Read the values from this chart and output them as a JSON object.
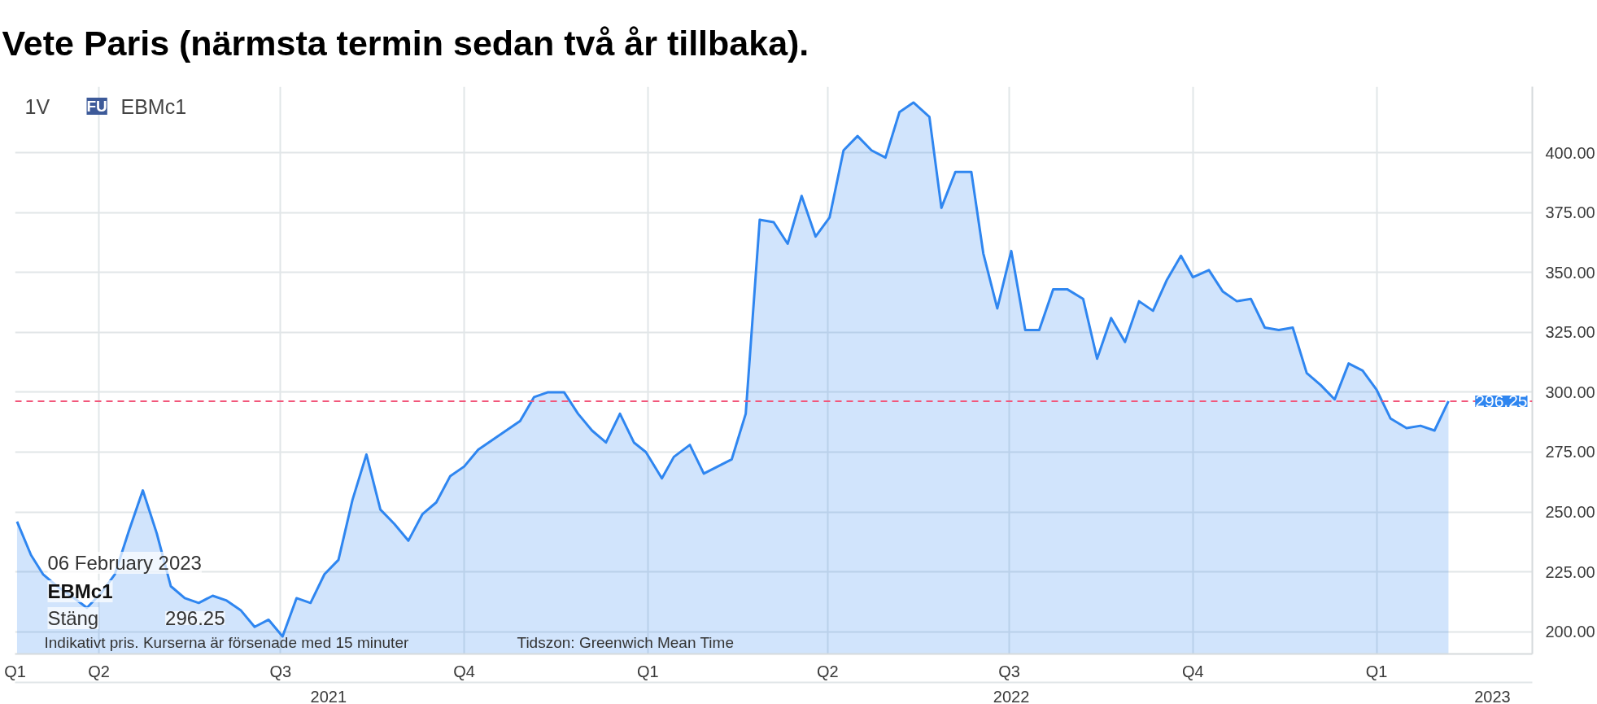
{
  "chart_data": {
    "type": "area",
    "title": "Vete Paris (närmsta termin sedan två år tillbaka).",
    "x": [
      "2021-02-19",
      "2021-02-26",
      "2021-03-04",
      "2021-03-11",
      "2021-03-18",
      "2021-03-26",
      "2021-04-02",
      "2021-04-09",
      "2021-04-16",
      "2021-04-23",
      "2021-04-30",
      "2021-05-07",
      "2021-05-14",
      "2021-05-21",
      "2021-05-28",
      "2021-06-04",
      "2021-06-11",
      "2021-06-18",
      "2021-06-25",
      "2021-07-02",
      "2021-07-09",
      "2021-07-16",
      "2021-07-23",
      "2021-07-30",
      "2021-08-06",
      "2021-08-13",
      "2021-08-20",
      "2021-08-27",
      "2021-09-03",
      "2021-09-10",
      "2021-09-17",
      "2021-09-24",
      "2021-10-01",
      "2021-10-08",
      "2021-10-15",
      "2021-10-22",
      "2021-10-29",
      "2021-11-05",
      "2021-11-12",
      "2021-11-20",
      "2021-11-27",
      "2021-12-04",
      "2021-12-11",
      "2021-12-18",
      "2021-12-25",
      "2021-12-31",
      "2022-01-08",
      "2022-01-14",
      "2022-01-22",
      "2022-01-29",
      "2022-02-05",
      "2022-02-12",
      "2022-02-19",
      "2022-02-26",
      "2022-03-05",
      "2022-03-12",
      "2022-03-19",
      "2022-03-26",
      "2022-04-02",
      "2022-04-09",
      "2022-04-16",
      "2022-04-23",
      "2022-04-30",
      "2022-05-07",
      "2022-05-14",
      "2022-05-22",
      "2022-05-28",
      "2022-06-04",
      "2022-06-12",
      "2022-06-18",
      "2022-06-25",
      "2022-07-02",
      "2022-07-09",
      "2022-07-16",
      "2022-07-23",
      "2022-07-30",
      "2022-08-07",
      "2022-08-14",
      "2022-08-21",
      "2022-08-28",
      "2022-09-04",
      "2022-09-11",
      "2022-09-18",
      "2022-09-25",
      "2022-10-01",
      "2022-10-09",
      "2022-10-16",
      "2022-10-23",
      "2022-10-30",
      "2022-11-06",
      "2022-11-13",
      "2022-11-20",
      "2022-11-27",
      "2022-12-04",
      "2022-12-11",
      "2022-12-18",
      "2022-12-25",
      "2023-01-01",
      "2023-01-08",
      "2023-01-16",
      "2023-01-23",
      "2023-01-30",
      "2023-02-06"
    ],
    "values": [
      246,
      232,
      224,
      219,
      215,
      210,
      216,
      224,
      242,
      259,
      241,
      219,
      214,
      212,
      215,
      213,
      209,
      202,
      205,
      198,
      214,
      212,
      224,
      230,
      255,
      274,
      251,
      245,
      238,
      249,
      254,
      265,
      269,
      276,
      280,
      284,
      288,
      298,
      300,
      300,
      291,
      284,
      279,
      291,
      279,
      275,
      264,
      273,
      278,
      266,
      269,
      272,
      291,
      372,
      371,
      362,
      382,
      365,
      373,
      401,
      407,
      401,
      398,
      417,
      421,
      415,
      377,
      392,
      392,
      358,
      335,
      359,
      326,
      326,
      343,
      343,
      339,
      314,
      331,
      321,
      338,
      334,
      347,
      357,
      348,
      351,
      342,
      338,
      339,
      327,
      326,
      327,
      308,
      303,
      297,
      312,
      309,
      301,
      289,
      285,
      286,
      284,
      296.25
    ],
    "color": "#2f86f0",
    "xlim": [
      "2021-02-18",
      "2023-03-20"
    ],
    "xticks": [
      {
        "value": "2021-02-18",
        "label": "Q1"
      },
      {
        "value": "2021-04-01",
        "label": "Q2"
      },
      {
        "value": "2021-07-01",
        "label": "Q3"
      },
      {
        "value": "2021-10-01",
        "label": "Q4"
      },
      {
        "value": "2022-01-01",
        "label": "Q1"
      },
      {
        "value": "2022-04-01",
        "label": "Q2"
      },
      {
        "value": "2022-07-01",
        "label": "Q3"
      },
      {
        "value": "2022-10-01",
        "label": "Q4"
      },
      {
        "value": "2023-01-01",
        "label": "Q1"
      }
    ],
    "x2lim": [
      "2021-02-18",
      "2023-03-20"
    ],
    "x2ticks": [
      {
        "value": "2021-07-25",
        "label": "2021"
      },
      {
        "value": "2022-07-02",
        "label": "2022"
      },
      {
        "value": "2023-02-28",
        "label": "2023"
      }
    ],
    "ylim": [
      190.7,
      427.6
    ],
    "yticks": [
      {
        "value": 200,
        "label": "200.00"
      },
      {
        "value": 225,
        "label": "225.00"
      },
      {
        "value": 250,
        "label": "250.00"
      },
      {
        "value": 275,
        "label": "275.00"
      },
      {
        "value": 300,
        "label": "300.00"
      },
      {
        "value": 325,
        "label": "325.00"
      },
      {
        "value": 350,
        "label": "350.00"
      },
      {
        "value": 375,
        "label": "375.00"
      },
      {
        "value": 400,
        "label": "400.00"
      }
    ],
    "ref_lines": [
      {
        "axis": "y",
        "value": 296.25,
        "label": "296.25",
        "color": "#f2577b",
        "line_style": "dashed"
      }
    ],
    "grid": true,
    "annotations": [
      "1V",
      "FU",
      "EBMc1",
      "06 February 2023",
      "EBMc1",
      "Stäng",
      "296.25",
      "Indikativt pris. Kurserna är försenade med 15 minuter",
      "Tidszon: Greenwich Mean Time"
    ]
  }
}
